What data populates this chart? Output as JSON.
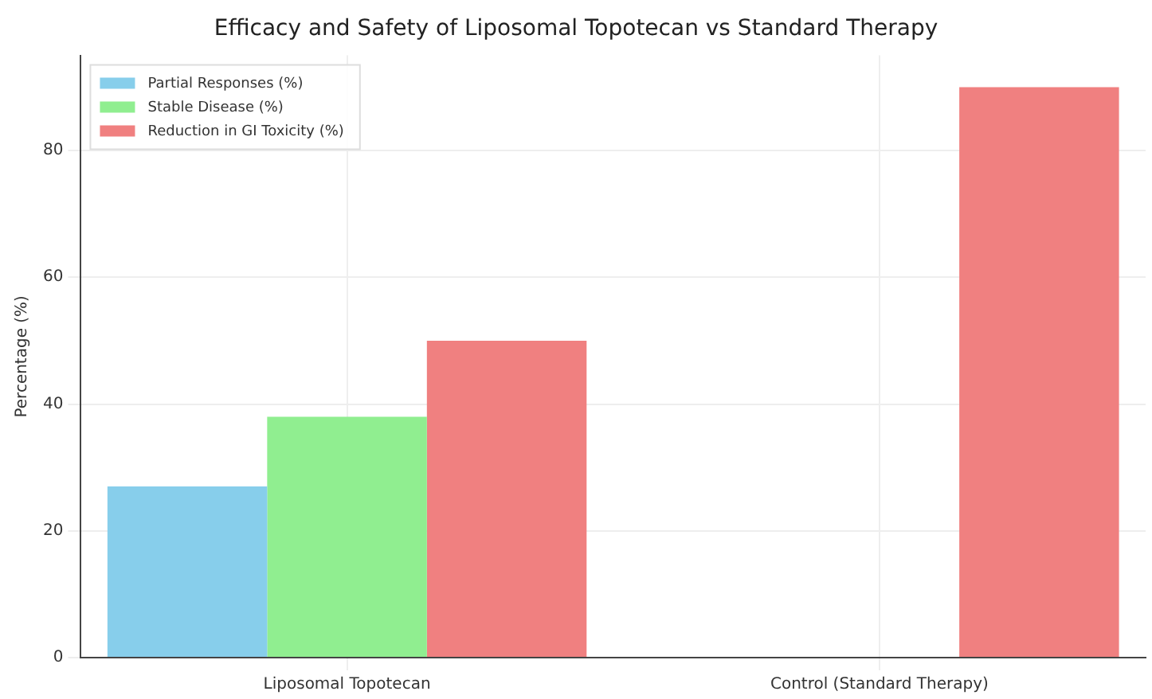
{
  "chart_data": {
    "type": "bar",
    "title": "Efficacy and Safety of Liposomal Topotecan vs Standard Therapy",
    "ylabel": "Percentage (%)",
    "categories": [
      "Liposomal Topotecan",
      "Control (Standard Therapy)"
    ],
    "series": [
      {
        "name": "Partial Responses (%)",
        "color": "#87ceeb",
        "values": [
          27,
          0
        ]
      },
      {
        "name": "Stable Disease (%)",
        "color": "#90ee90",
        "values": [
          38,
          0
        ]
      },
      {
        "name": "Reduction in GI Toxicity (%)",
        "color": "#f08080",
        "values": [
          50,
          90
        ]
      }
    ],
    "ylim": [
      0,
      95
    ],
    "yticks": [
      0,
      20,
      40,
      60,
      80
    ],
    "grid": true,
    "legend": "top left"
  }
}
